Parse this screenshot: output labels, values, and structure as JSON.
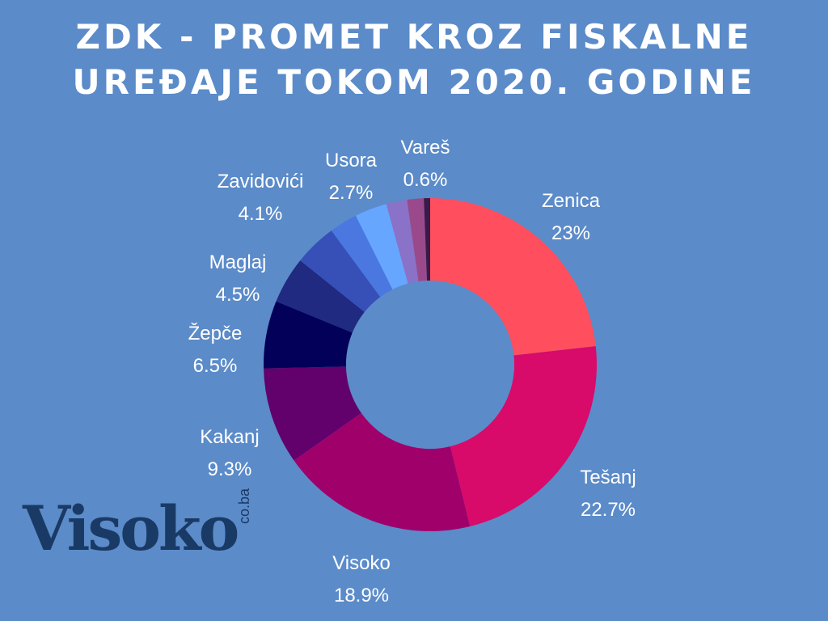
{
  "colors": {
    "background": "#5b8bc9",
    "text": "#ffffff",
    "logo": "#1a3a66"
  },
  "header": {
    "title_line1": "ZDK - PROMET KROZ FISKALNE",
    "title_line2": "UREĐAJE TOKOM 2020. GODINE"
  },
  "logo": {
    "word": "Visoko",
    "suffix": "co.ba"
  },
  "chart_data": {
    "type": "pie",
    "variant": "donut",
    "title": "ZDK - PROMET KROZ FISKALNE UREĐAJE TOKOM 2020. GODINE",
    "legend": "none",
    "slices": [
      {
        "label": "Zenica",
        "value": 23,
        "display": "23%",
        "color": "#ff4f5e"
      },
      {
        "label": "Tešanj",
        "value": 22.7,
        "display": "22.7%",
        "color": "#d80a6a"
      },
      {
        "label": "Visoko",
        "value": 18.9,
        "display": "18.9%",
        "color": "#a0006a"
      },
      {
        "label": "Kakanj",
        "value": 9.3,
        "display": "9.3%",
        "color": "#62006c"
      },
      {
        "label": "Žepče",
        "value": 6.5,
        "display": "6.5%",
        "color": "#03005a"
      },
      {
        "label": "Maglaj",
        "value": 4.5,
        "display": "4.5%",
        "color": "#1f2a80"
      },
      {
        "label": "Zavidovići",
        "value": 4.1,
        "display": "4.1%",
        "color": "#3650b8"
      },
      {
        "label": "Usora",
        "value": 2.7,
        "display": "2.7%",
        "color": "#4a78e0"
      },
      {
        "label": "Vareš",
        "value": 0.6,
        "display": "0.6%",
        "color": "#3a1a4a"
      }
    ],
    "hidden_slices": [
      {
        "value": 3.1,
        "color": "#66a6ff"
      },
      {
        "value": 2.0,
        "color": "#8a72c8"
      },
      {
        "value": 1.6,
        "color": "#9a4a8a"
      }
    ]
  }
}
